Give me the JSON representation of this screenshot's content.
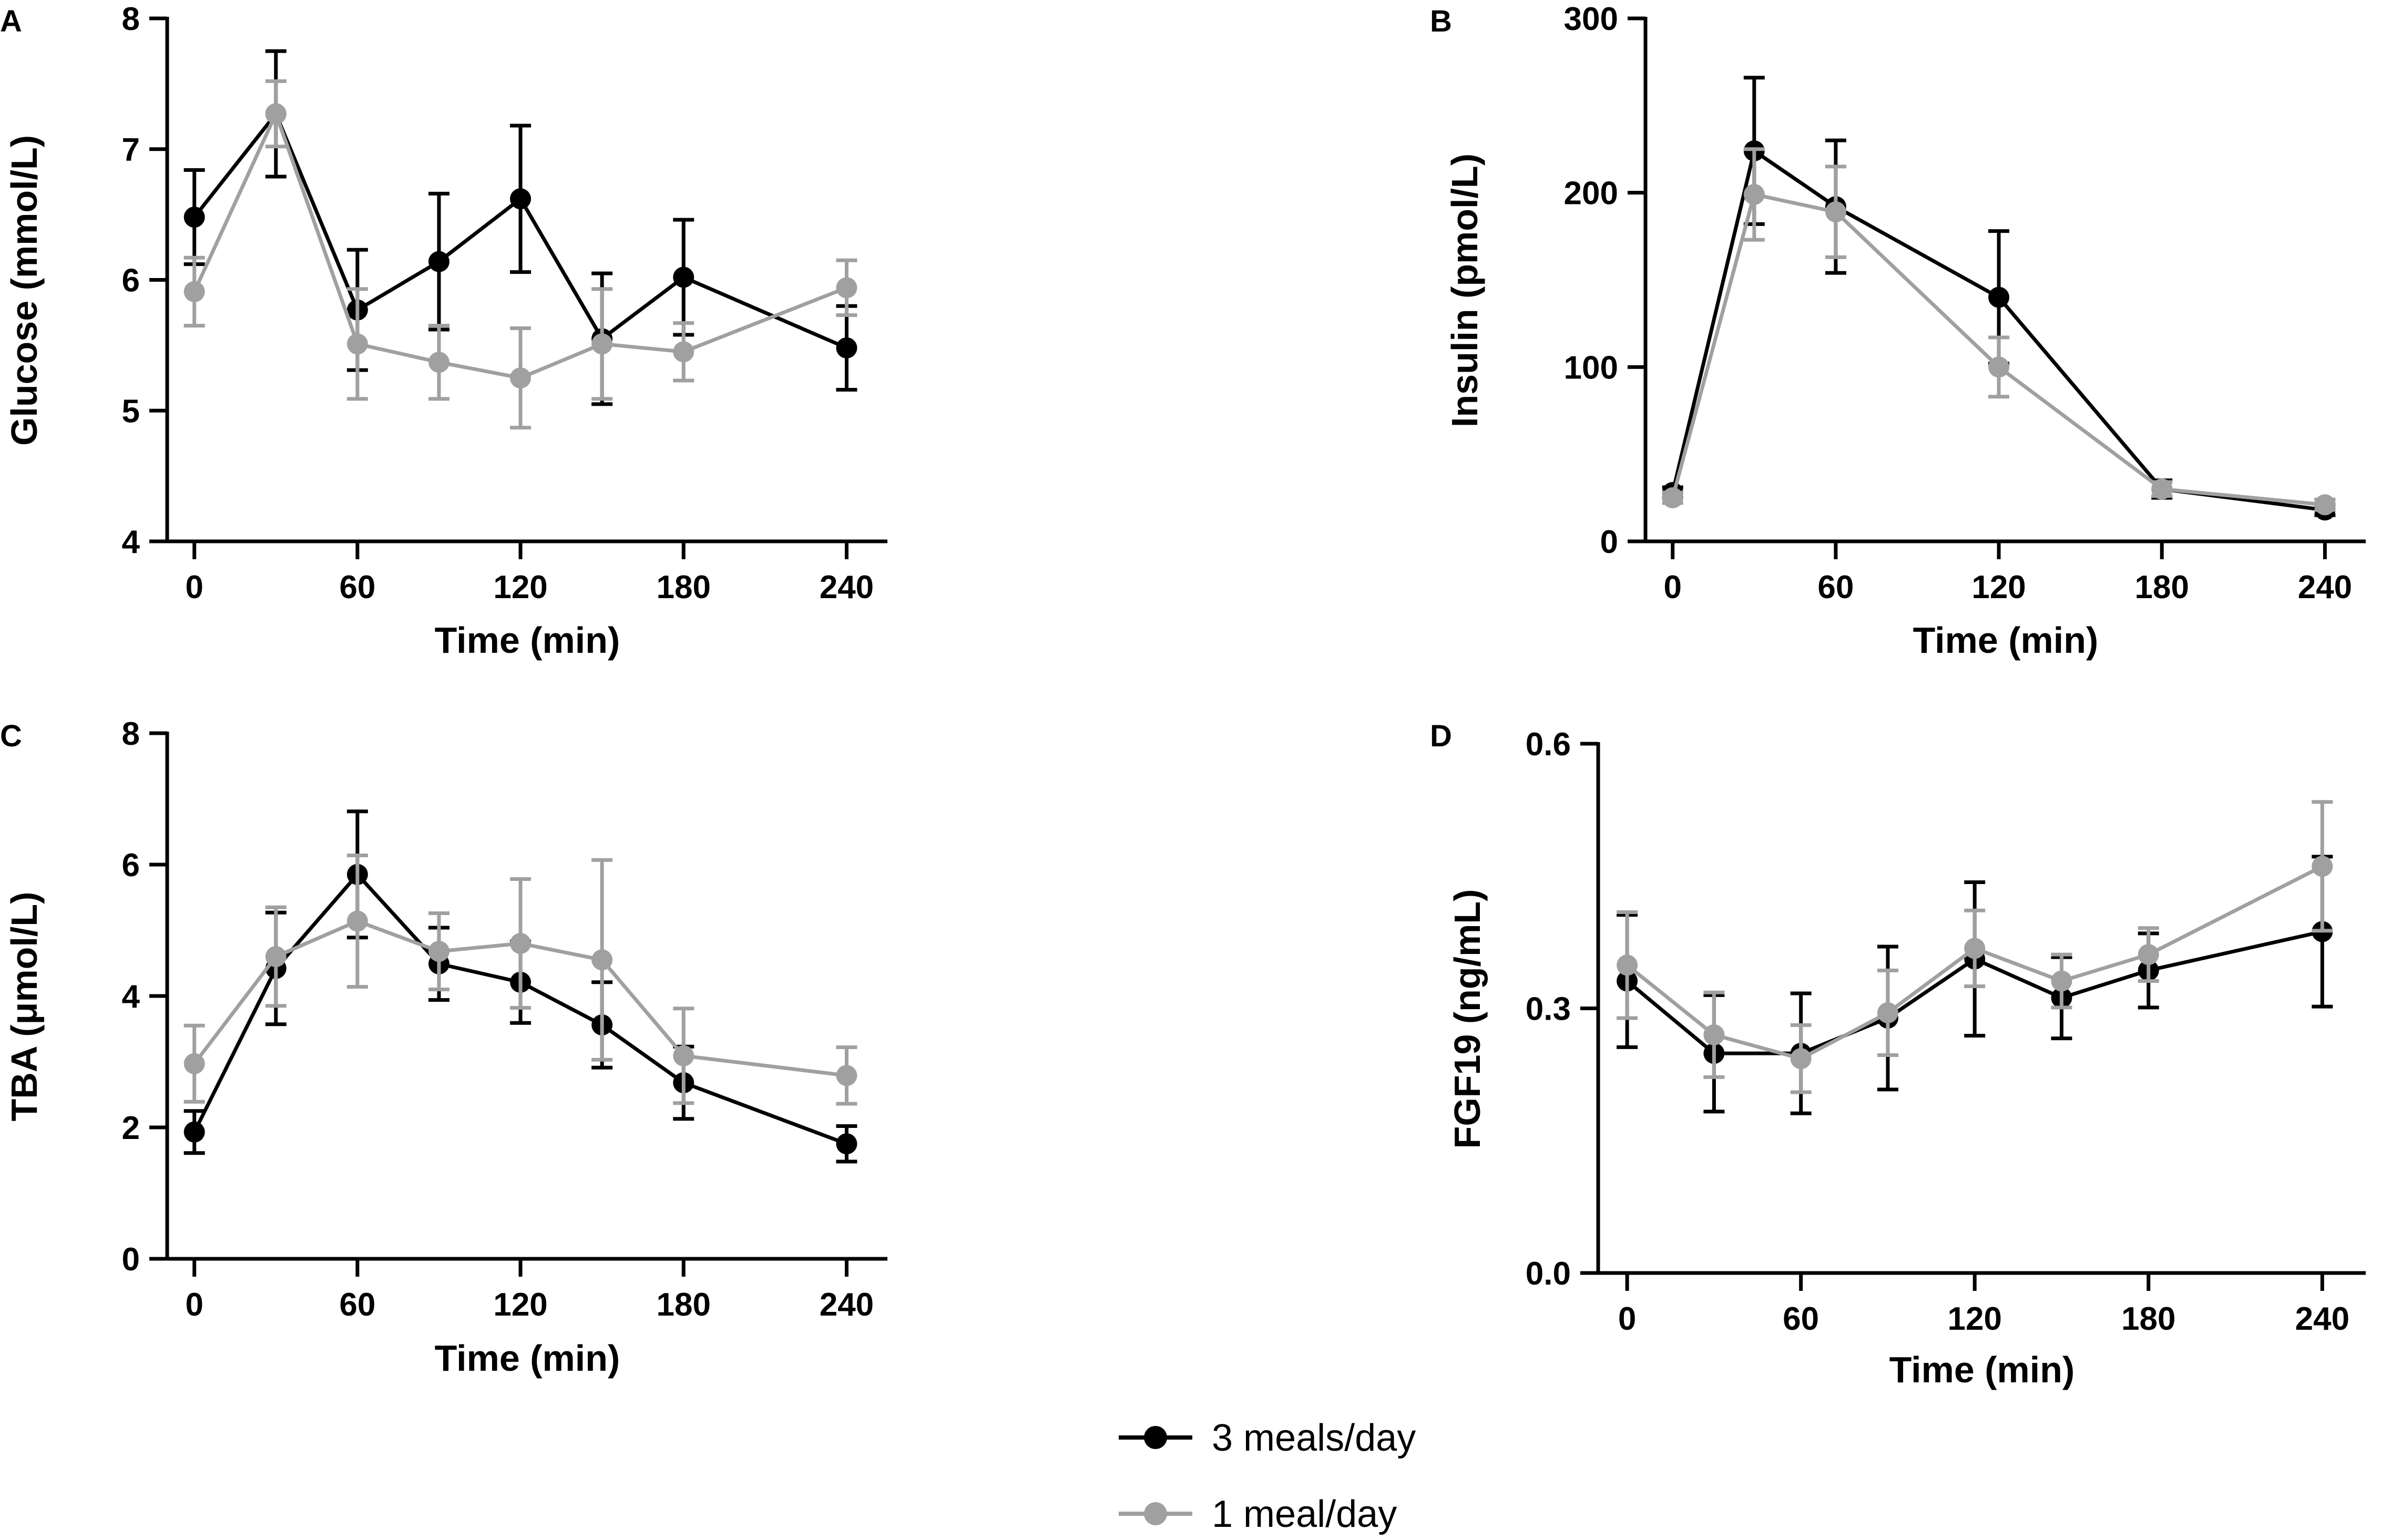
{
  "series_colors": {
    "3 meals/day": "#000000",
    "1 meal/day": "#a0a0a0"
  },
  "legend": [
    {
      "label": "3 meals/day",
      "color": "#000000"
    },
    {
      "label": "1 meal/day",
      "color": "#a0a0a0"
    }
  ],
  "chart_data": [
    {
      "panel": "A",
      "type": "line",
      "xlabel": "Time (min)",
      "ylabel": "Glucose (mmol/L)",
      "xlim": [
        -10,
        255
      ],
      "ylim": [
        4,
        8
      ],
      "xticks": [
        0,
        60,
        120,
        180,
        240
      ],
      "yticks": [
        4,
        5,
        6,
        7,
        8
      ],
      "ytick_labels": [
        "4",
        "5",
        "6",
        "7",
        "8"
      ],
      "series": [
        {
          "name": "3 meals/day",
          "x": [
            0,
            30,
            60,
            90,
            120,
            150,
            180,
            240
          ],
          "y": [
            6.48,
            7.27,
            5.77,
            6.14,
            6.62,
            5.55,
            6.02,
            5.48
          ],
          "err": [
            0.36,
            0.48,
            0.46,
            0.52,
            0.56,
            0.5,
            0.44,
            0.32
          ]
        },
        {
          "name": "1 meal/day",
          "x": [
            0,
            30,
            60,
            90,
            120,
            150,
            180,
            240
          ],
          "y": [
            5.91,
            7.27,
            5.51,
            5.37,
            5.25,
            5.51,
            5.45,
            5.94
          ],
          "err": [
            0.26,
            0.25,
            0.42,
            0.28,
            0.38,
            0.42,
            0.22,
            0.21
          ]
        }
      ]
    },
    {
      "panel": "B",
      "type": "line",
      "xlabel": "Time (min)",
      "ylabel": "Insulin (pmol/L)",
      "xlim": [
        -10,
        255
      ],
      "ylim": [
        0,
        300
      ],
      "xticks": [
        0,
        60,
        120,
        180,
        240
      ],
      "yticks": [
        0,
        100,
        200,
        300
      ],
      "ytick_labels": [
        "0",
        "100",
        "200",
        "300"
      ],
      "series": [
        {
          "name": "3 meals/day",
          "x": [
            0,
            30,
            60,
            120,
            180,
            240
          ],
          "y": [
            28,
            224,
            192,
            140,
            30,
            18
          ],
          "err": [
            3,
            42,
            38,
            38,
            5,
            3
          ]
        },
        {
          "name": "1 meal/day",
          "x": [
            0,
            30,
            60,
            120,
            180,
            240
          ],
          "y": [
            25,
            199,
            189,
            100,
            30,
            21
          ],
          "err": [
            3,
            26,
            26,
            17,
            4,
            3
          ]
        }
      ]
    },
    {
      "panel": "C",
      "type": "line",
      "xlabel": "Time (min)",
      "ylabel": "TBA (μmol/L)",
      "xlim": [
        -10,
        255
      ],
      "ylim": [
        0,
        8
      ],
      "xticks": [
        0,
        60,
        120,
        180,
        240
      ],
      "yticks": [
        0,
        2,
        4,
        6,
        8
      ],
      "ytick_labels": [
        "0",
        "2",
        "4",
        "6",
        "8"
      ],
      "series": [
        {
          "name": "3 meals/day",
          "x": [
            0,
            30,
            60,
            90,
            120,
            150,
            180,
            240
          ],
          "y": [
            1.93,
            4.42,
            5.85,
            4.49,
            4.21,
            3.56,
            2.68,
            1.75
          ],
          "err": [
            0.32,
            0.85,
            0.96,
            0.55,
            0.62,
            0.65,
            0.55,
            0.27
          ]
        },
        {
          "name": "1 meal/day",
          "x": [
            0,
            30,
            60,
            90,
            120,
            150,
            180,
            240
          ],
          "y": [
            2.97,
            4.6,
            5.14,
            4.68,
            4.8,
            4.55,
            3.09,
            2.79
          ],
          "err": [
            0.58,
            0.75,
            1.0,
            0.58,
            0.98,
            1.52,
            0.72,
            0.43
          ]
        }
      ]
    },
    {
      "panel": "D",
      "type": "line",
      "xlabel": "Time (min)",
      "ylabel": "FGF19 (ng/mL)",
      "xlim": [
        -10,
        255
      ],
      "ylim": [
        0,
        0.6
      ],
      "xticks": [
        0,
        60,
        120,
        180,
        240
      ],
      "yticks": [
        0,
        0.3,
        0.6
      ],
      "ytick_labels": [
        "0.0",
        "0.3",
        "0.6"
      ],
      "series": [
        {
          "name": "3 meals/day",
          "x": [
            0,
            30,
            60,
            90,
            120,
            150,
            180,
            240
          ],
          "y": [
            0.331,
            0.249,
            0.249,
            0.289,
            0.356,
            0.312,
            0.343,
            0.387
          ],
          "err": [
            0.075,
            0.066,
            0.068,
            0.081,
            0.087,
            0.046,
            0.042,
            0.085
          ]
        },
        {
          "name": "1 meal/day",
          "x": [
            0,
            30,
            60,
            90,
            120,
            150,
            180,
            240
          ],
          "y": [
            0.349,
            0.27,
            0.243,
            0.295,
            0.368,
            0.331,
            0.361,
            0.461
          ],
          "err": [
            0.06,
            0.048,
            0.038,
            0.048,
            0.043,
            0.03,
            0.03,
            0.073
          ]
        }
      ]
    }
  ]
}
